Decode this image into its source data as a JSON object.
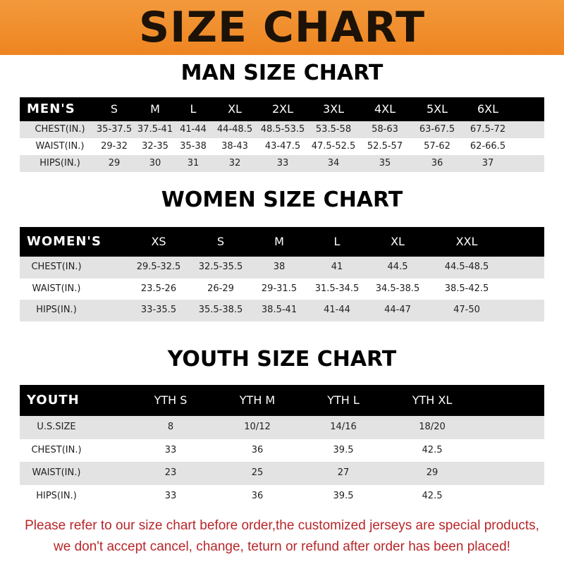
{
  "header": {
    "title": "SIZE CHART"
  },
  "tables": [
    {
      "title": "MAN SIZE CHART",
      "header": [
        "MEN'S",
        "S",
        "M",
        "L",
        "XL",
        "2XL",
        "3XL",
        "4XL",
        "5XL",
        "6XL"
      ],
      "rows": [
        [
          "CHEST(IN.)",
          "35-37.5",
          "37.5-41",
          "41-44",
          "44-48.5",
          "48.5-53.5",
          "53.5-58",
          "58-63",
          "63-67.5",
          "67.5-72"
        ],
        [
          "WAIST(IN.)",
          "29-32",
          "32-35",
          "35-38",
          "38-43",
          "43-47.5",
          "47.5-52.5",
          "52.5-57",
          "57-62",
          "62-66.5"
        ],
        [
          "HIPS(IN.)",
          "29",
          "30",
          "31",
          "32",
          "33",
          "34",
          "35",
          "36",
          "37"
        ]
      ]
    },
    {
      "title": "WOMEN SIZE CHART",
      "header": [
        "WOMEN'S",
        "XS",
        "S",
        "M",
        "L",
        "XL",
        "XXL"
      ],
      "rows": [
        [
          "CHEST(IN.)",
          "29.5-32.5",
          "32.5-35.5",
          "38",
          "41",
          "44.5",
          "44.5-48.5"
        ],
        [
          "WAIST(IN.)",
          "23.5-26",
          "26-29",
          "29-31.5",
          "31.5-34.5",
          "34.5-38.5",
          "38.5-42.5"
        ],
        [
          "HIPS(IN.)",
          "33-35.5",
          "35.5-38.5",
          "38.5-41",
          "41-44",
          "44-47",
          "47-50"
        ]
      ]
    },
    {
      "title": "YOUTH SIZE CHART",
      "header": [
        "YOUTH",
        "YTH S",
        "YTH M",
        "YTH L",
        "YTH XL"
      ],
      "rows": [
        [
          "U.S.SIZE",
          "8",
          "10/12",
          "14/16",
          "18/20"
        ],
        [
          "CHEST(IN.)",
          "33",
          "36",
          "39.5",
          "42.5"
        ],
        [
          "WAIST(IN.)",
          "23",
          "25",
          "27",
          "29"
        ],
        [
          "HIPS(IN.)",
          "33",
          "36",
          "39.5",
          "42.5"
        ]
      ]
    }
  ],
  "note": [
    "Please refer to our size chart before order,the customized jerseys are special products,",
    "we don't accept cancel, change, teturn or refund after order has been placed!"
  ]
}
